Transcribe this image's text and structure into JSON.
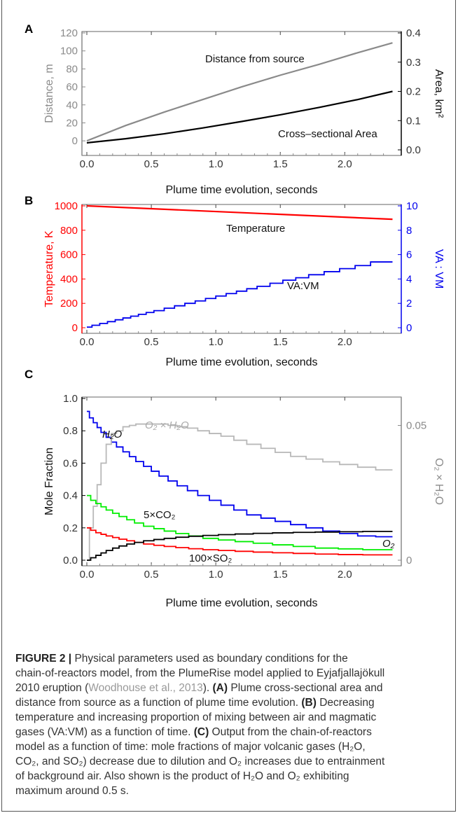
{
  "colors": {
    "gray": "#8a8a8a",
    "black": "#000000",
    "red": "#ff0000",
    "blue": "#0000ee",
    "green": "#00ee00",
    "lightgray": "#b8b8b8"
  },
  "chart_data": [
    {
      "panel": "A",
      "type": "line",
      "xlabel": "Plume time evolution, seconds",
      "ylabel": "Distance, m",
      "y2label": "Area, km²",
      "xlim": [
        0,
        2.4
      ],
      "ylim": [
        -10,
        120
      ],
      "y2lim": [
        0,
        0.4
      ],
      "xticks": [
        "0.0",
        "0.5",
        "1.0",
        "1.5",
        "2.0"
      ],
      "yticks": [
        "0",
        "20",
        "40",
        "60",
        "80",
        "100",
        "120"
      ],
      "y2ticks": [
        "0.0",
        "0.1",
        "0.2",
        "0.3",
        "0.4"
      ],
      "series": [
        {
          "name": "Distance from source",
          "axis": "left",
          "color": "#8a8a8a",
          "x": [
            0,
            0.3,
            0.6,
            0.9,
            1.2,
            1.5,
            1.8,
            2.1,
            2.37
          ],
          "y": [
            0,
            17,
            32,
            46,
            60,
            73,
            85,
            98,
            109
          ]
        },
        {
          "name": "Cross–sectional Area",
          "axis": "right",
          "color": "#000000",
          "x": [
            0,
            0.3,
            0.6,
            0.9,
            1.2,
            1.5,
            1.8,
            2.1,
            2.37
          ],
          "y": [
            0.024,
            0.038,
            0.055,
            0.075,
            0.097,
            0.12,
            0.145,
            0.172,
            0.2
          ]
        }
      ],
      "annotations": [
        "Distance from source",
        "Cross–sectional Area"
      ]
    },
    {
      "panel": "B",
      "type": "line",
      "xlabel": "Plume time evolution, seconds",
      "ylabel": "Temperature, K",
      "y2label": "VA : VM",
      "xlim": [
        0,
        2.4
      ],
      "ylim": [
        0,
        1000
      ],
      "y2lim": [
        0,
        10
      ],
      "xticks": [
        "0.0",
        "0.5",
        "1.0",
        "1.5",
        "2.0"
      ],
      "yticks": [
        "0",
        "200",
        "400",
        "600",
        "800",
        "1000"
      ],
      "y2ticks": [
        "0",
        "2",
        "4",
        "6",
        "8",
        "10"
      ],
      "series": [
        {
          "name": "Temperature",
          "axis": "left",
          "color": "#ff0000",
          "x": [
            0,
            2.37
          ],
          "y": [
            1000,
            890
          ]
        },
        {
          "name": "VA:VM",
          "axis": "right",
          "color": "#0000ee",
          "step": true,
          "x": [
            0,
            0.04,
            0.1,
            0.16,
            0.22,
            0.28,
            0.34,
            0.4,
            0.46,
            0.52,
            0.6,
            0.68,
            0.76,
            0.84,
            0.92,
            1.0,
            1.08,
            1.16,
            1.24,
            1.32,
            1.42,
            1.52,
            1.62,
            1.72,
            1.84,
            1.96,
            2.08,
            2.2,
            2.37
          ],
          "y": [
            0.05,
            0.2,
            0.35,
            0.5,
            0.65,
            0.8,
            0.95,
            1.1,
            1.25,
            1.4,
            1.6,
            1.8,
            2.0,
            2.2,
            2.4,
            2.6,
            2.8,
            3.0,
            3.2,
            3.4,
            3.65,
            3.9,
            4.1,
            4.35,
            4.6,
            4.85,
            5.1,
            5.4,
            5.4
          ]
        }
      ],
      "annotations": [
        "Temperature",
        "VA:VM"
      ]
    },
    {
      "panel": "C",
      "type": "line",
      "xlabel": "Plume time evolution, seconds",
      "ylabel": "Mole Fraction",
      "y2label": "O₂ × H₂O",
      "xlim": [
        0,
        2.4
      ],
      "ylim": [
        0,
        1.0
      ],
      "y2lim": [
        0,
        0.06
      ],
      "xticks": [
        "0.0",
        "0.5",
        "1.0",
        "1.5",
        "2.0"
      ],
      "yticks": [
        "0.0",
        "0.2",
        "0.4",
        "0.6",
        "0.8",
        "1.0"
      ],
      "y2ticks": [
        "0",
        "0.05"
      ],
      "series": [
        {
          "name": "H₂O",
          "axis": "left",
          "color": "#0000ee",
          "step": true,
          "x": [
            0,
            0.02,
            0.05,
            0.08,
            0.11,
            0.15,
            0.19,
            0.23,
            0.28,
            0.33,
            0.38,
            0.44,
            0.5,
            0.56,
            0.63,
            0.7,
            0.78,
            0.86,
            0.95,
            1.04,
            1.14,
            1.24,
            1.35,
            1.46,
            1.58,
            1.7,
            1.83,
            1.96,
            2.1,
            2.24,
            2.37
          ],
          "y": [
            0.92,
            0.88,
            0.85,
            0.82,
            0.79,
            0.76,
            0.73,
            0.7,
            0.67,
            0.64,
            0.61,
            0.58,
            0.55,
            0.52,
            0.49,
            0.46,
            0.43,
            0.4,
            0.37,
            0.34,
            0.31,
            0.28,
            0.26,
            0.24,
            0.22,
            0.2,
            0.18,
            0.165,
            0.15,
            0.145,
            0.145
          ]
        },
        {
          "name": "O₂ × H₂O",
          "axis": "right",
          "color": "#b8b8b8",
          "step": true,
          "x": [
            0,
            0.02,
            0.05,
            0.08,
            0.11,
            0.15,
            0.19,
            0.23,
            0.28,
            0.33,
            0.38,
            0.44,
            0.5,
            0.56,
            0.63,
            0.7,
            0.78,
            0.86,
            0.95,
            1.04,
            1.14,
            1.24,
            1.35,
            1.46,
            1.58,
            1.7,
            1.83,
            1.96,
            2.1,
            2.24,
            2.37
          ],
          "y": [
            0.0,
            0.012,
            0.02,
            0.028,
            0.036,
            0.043,
            0.047,
            0.048,
            0.0495,
            0.05,
            0.0505,
            0.0505,
            0.0505,
            0.0505,
            0.05,
            0.0495,
            0.049,
            0.048,
            0.047,
            0.046,
            0.0445,
            0.043,
            0.0415,
            0.04,
            0.0385,
            0.0375,
            0.0365,
            0.0355,
            0.0345,
            0.0335,
            0.0335
          ]
        },
        {
          "name": "5×CO₂",
          "axis": "left",
          "color": "#00ee00",
          "step": true,
          "x": [
            0,
            0.03,
            0.07,
            0.11,
            0.15,
            0.2,
            0.25,
            0.31,
            0.37,
            0.44,
            0.52,
            0.6,
            0.69,
            0.79,
            0.9,
            1.02,
            1.15,
            1.29,
            1.44,
            1.6,
            1.77,
            1.95,
            2.14,
            2.37
          ],
          "y": [
            0.4,
            0.37,
            0.35,
            0.33,
            0.31,
            0.29,
            0.27,
            0.25,
            0.23,
            0.21,
            0.195,
            0.18,
            0.165,
            0.15,
            0.135,
            0.125,
            0.115,
            0.105,
            0.095,
            0.085,
            0.075,
            0.07,
            0.065,
            0.065
          ]
        },
        {
          "name": "100×SO₂",
          "axis": "left",
          "color": "#ff0000",
          "step": true,
          "x": [
            0,
            0.03,
            0.07,
            0.11,
            0.15,
            0.2,
            0.25,
            0.31,
            0.37,
            0.44,
            0.52,
            0.6,
            0.69,
            0.79,
            0.9,
            1.02,
            1.15,
            1.29,
            1.44,
            1.6,
            1.77,
            1.95,
            2.14,
            2.37
          ],
          "y": [
            0.2,
            0.185,
            0.17,
            0.16,
            0.15,
            0.14,
            0.13,
            0.12,
            0.11,
            0.1,
            0.092,
            0.085,
            0.078,
            0.071,
            0.065,
            0.06,
            0.055,
            0.05,
            0.046,
            0.042,
            0.038,
            0.035,
            0.033,
            0.033
          ]
        },
        {
          "name": "O₂",
          "axis": "left",
          "color": "#000000",
          "step": true,
          "x": [
            0,
            0.03,
            0.07,
            0.11,
            0.15,
            0.2,
            0.25,
            0.31,
            0.37,
            0.44,
            0.52,
            0.6,
            0.69,
            0.79,
            0.9,
            1.02,
            1.15,
            1.29,
            1.44,
            1.6,
            1.77,
            1.95,
            2.14,
            2.37
          ],
          "y": [
            0.0,
            0.015,
            0.03,
            0.045,
            0.06,
            0.075,
            0.088,
            0.1,
            0.11,
            0.12,
            0.128,
            0.135,
            0.142,
            0.148,
            0.153,
            0.158,
            0.162,
            0.166,
            0.169,
            0.172,
            0.174,
            0.176,
            0.178,
            0.178
          ]
        }
      ],
      "annotations": [
        "H₂O",
        "O₂ × H₂O",
        "5×CO₂",
        "100×SO₂",
        "O₂"
      ]
    }
  ],
  "panel_labels": {
    "a": "A",
    "b": "B",
    "c": "C"
  },
  "caption": {
    "figure_label": "FIGURE 2 |",
    "line1": " Physical parameters used as boundary conditions for the",
    "line2": "chain-of-reactors model, from the PlumeRise model applied to Eyjafjallajökull",
    "line3a": "2010 eruption (",
    "ref": "Woodhouse et al., 2013",
    "line3b": "). ",
    "bold_a": "(A)",
    "line3c": " Plume cross-sectional area and",
    "line4": "distance from source as a function of plume time evolution. ",
    "bold_b": "(B)",
    "line4b": " Decreasing",
    "line5": "temperature and increasing proportion of mixing between air and magmatic",
    "line6a": "gases (VA:VM) as a function of time. ",
    "bold_c": "(C)",
    "line6b": " Output from the chain-of-reactors",
    "line7": "model as a function of time: mole fractions of major volcanic gases (H₂O,",
    "line8": "CO₂, and SO₂) decrease due to dilution and O₂ increases due to entrainment",
    "line9": "of background air. Also shown is the product of H₂O and O₂ exhibiting",
    "line10": "maximum around 0.5 s."
  }
}
